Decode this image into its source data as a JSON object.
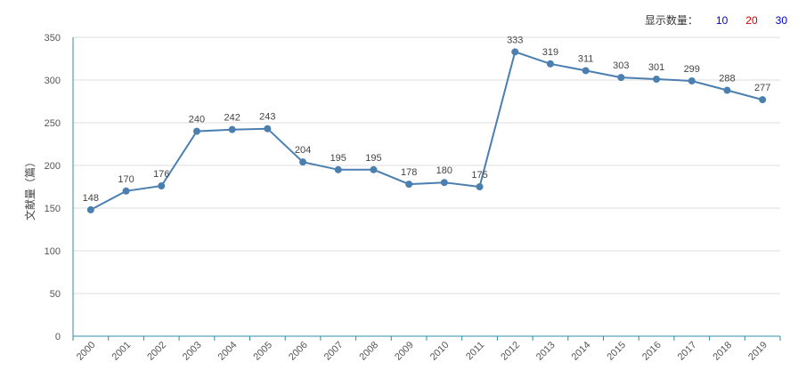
{
  "controls": {
    "label": "显示数量：",
    "options": [
      {
        "label": "10",
        "color": "#0000cc"
      },
      {
        "label": "20",
        "color": "#cc0000"
      },
      {
        "label": "30",
        "color": "#0000cc"
      }
    ]
  },
  "chart_data": {
    "type": "line",
    "ylabel": "文献量（篇）",
    "xlabel": "",
    "categories": [
      "2000",
      "2001",
      "2002",
      "2003",
      "2004",
      "2005",
      "2006",
      "2007",
      "2008",
      "2009",
      "2010",
      "2011",
      "2012",
      "2013",
      "2014",
      "2015",
      "2016",
      "2017",
      "2018",
      "2019"
    ],
    "series": [
      {
        "values": [
          148,
          170,
          176,
          240,
          242,
          243,
          204,
          195,
          195,
          178,
          180,
          175,
          333,
          319,
          311,
          303,
          301,
          299,
          288,
          277
        ]
      }
    ],
    "ylim": [
      0,
      350
    ],
    "yticks": [
      0,
      50,
      100,
      150,
      200,
      250,
      300,
      350
    ],
    "grid": true,
    "line_color": "#4a7fb0",
    "axis_color": "#2e8fa6"
  }
}
